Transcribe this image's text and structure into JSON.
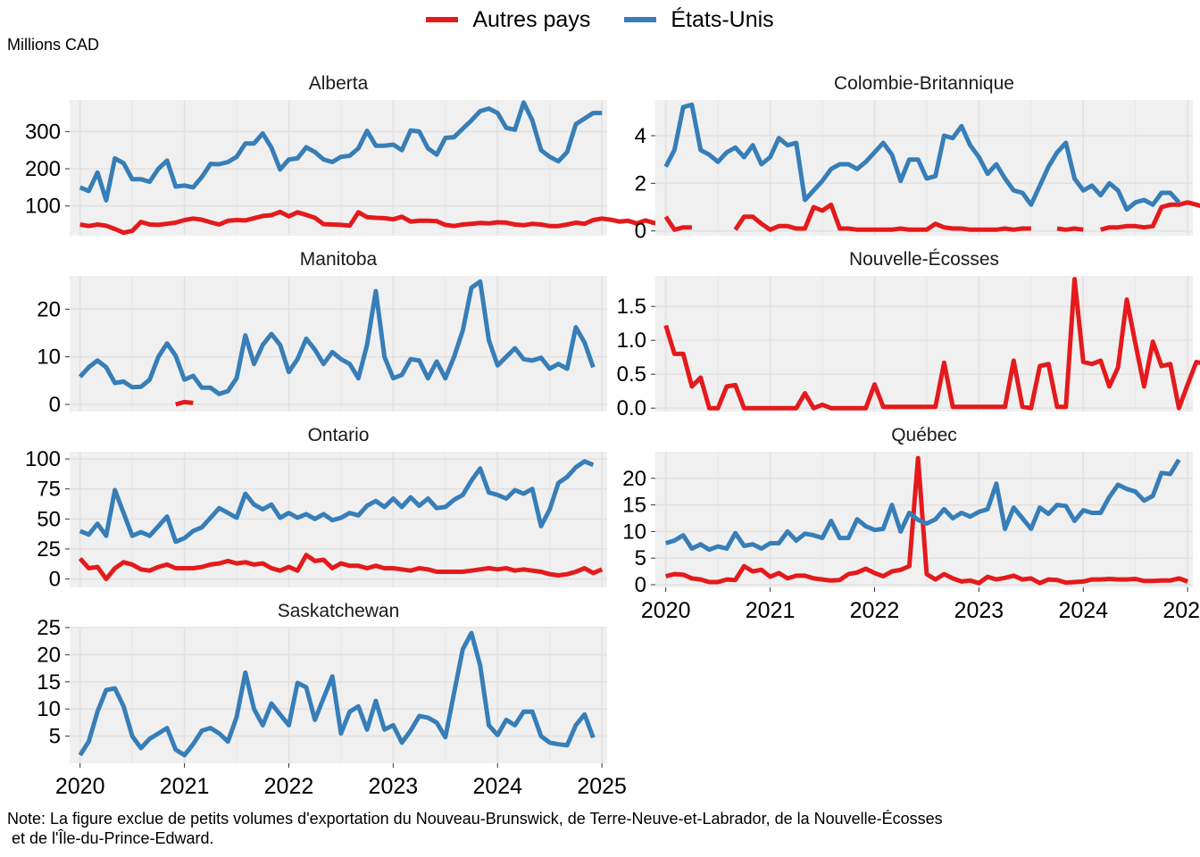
{
  "legend": {
    "items": [
      {
        "label": "Autres pays",
        "color": "#E41A1C"
      },
      {
        "label": "États-Unis",
        "color": "#377EB8"
      }
    ]
  },
  "unit_label": "Millions CAD",
  "note": {
    "line1": "Note: La figure exclue de petits volumes d'exportation du Nouveau-Brunswick, de Terre-Neuve-et-Labrador, de la Nouvelle-Écosses",
    "line2": " et de l'Île-du-Prince-Edward."
  },
  "chart_data": {
    "type": "line",
    "time_start": "2020-01",
    "time_step": "month",
    "x_ticks": [
      "2020",
      "2021",
      "2022",
      "2023",
      "2024",
      "2025"
    ],
    "x_range": [
      2019.9,
      2025.05
    ],
    "grid": true,
    "legend_position": "top",
    "panels": [
      {
        "title": "Alberta",
        "ylim": [
          20,
          385
        ],
        "yticks": [
          100,
          200,
          300
        ],
        "ytick_labels": [
          "100",
          "200",
          "300"
        ],
        "series": [
          {
            "name": "Autres pays",
            "values": [
              50,
              46,
              50,
              47,
              38,
              28,
              33,
              57,
              50,
              49,
              52,
              55,
              62,
              66,
              63,
              56,
              50,
              60,
              62,
              61,
              67,
              73,
              75,
              84,
              72,
              83,
              76,
              68,
              51,
              50,
              49,
              47,
              83,
              70,
              68,
              67,
              64,
              71,
              58,
              60,
              60,
              59,
              49,
              46,
              50,
              52,
              54,
              53,
              56,
              55,
              50,
              48,
              52,
              50,
              46,
              46,
              50,
              55,
              52,
              62,
              66,
              63,
              58,
              60,
              53,
              61,
              54,
              53,
              49,
              48,
              51,
              55
            ]
          },
          {
            "name": "États-Unis",
            "values": [
              150,
              140,
              190,
              115,
              228,
              215,
              172,
              172,
              165,
              200,
              222,
              152,
              155,
              150,
              178,
              213,
              212,
              218,
              232,
              268,
              268,
              295,
              257,
              198,
              225,
              228,
              258,
              245,
              225,
              218,
              232,
              235,
              255,
              302,
              262,
              262,
              265,
              250,
              303,
              300,
              255,
              238,
              283,
              285,
              308,
              330,
              355,
              362,
              350,
              310,
              305,
              378,
              330,
              250,
              232,
              220,
              245,
              320,
              335,
              350,
              350
            ]
          }
        ]
      },
      {
        "title": "Colombie-Britannique",
        "ylim": [
          -0.2,
          5.5
        ],
        "yticks": [
          0,
          2,
          4
        ],
        "ytick_labels": [
          "0",
          "2",
          "4"
        ],
        "series": [
          {
            "name": "Autres pays",
            "values": [
              0.6,
              0.05,
              0.15,
              0.15,
              null,
              null,
              null,
              null,
              0.05,
              0.6,
              0.6,
              0.3,
              0.05,
              0.2,
              0.2,
              0.1,
              0.1,
              1.0,
              0.85,
              1.1,
              0.1,
              0.1,
              0.05,
              0.05,
              0.05,
              0.05,
              0.05,
              0.1,
              0.05,
              0.05,
              0.05,
              0.3,
              0.15,
              0.1,
              0.1,
              0.05,
              0.05,
              0.05,
              0.05,
              0.1,
              0.05,
              0.1,
              0.1,
              null,
              null,
              0.1,
              0.05,
              0.1,
              0.05,
              null,
              0.05,
              0.15,
              0.15,
              0.2,
              0.2,
              0.15,
              0.2,
              1.0,
              1.1,
              1.1,
              1.2,
              1.1,
              1.0
            ]
          },
          {
            "name": "États-Unis",
            "values": [
              2.7,
              3.4,
              5.2,
              5.3,
              3.4,
              3.2,
              2.9,
              3.3,
              3.5,
              3.1,
              3.6,
              2.8,
              3.1,
              3.9,
              3.6,
              3.7,
              1.3,
              1.7,
              2.1,
              2.6,
              2.8,
              2.8,
              2.6,
              2.9,
              3.3,
              3.7,
              3.2,
              2.1,
              3.0,
              3.0,
              2.2,
              2.3,
              4.0,
              3.9,
              4.4,
              3.6,
              3.1,
              2.4,
              2.8,
              2.2,
              1.7,
              1.6,
              1.1,
              1.9,
              2.7,
              3.3,
              3.7,
              2.2,
              1.7,
              1.9,
              1.5,
              2.0,
              1.7,
              0.9,
              1.2,
              1.3,
              1.1,
              1.6,
              1.6,
              1.2
            ]
          }
        ]
      },
      {
        "title": "Manitoba",
        "ylim": [
          -1.5,
          27
        ],
        "yticks": [
          0,
          10,
          20
        ],
        "ytick_labels": [
          "0",
          "10",
          "20"
        ],
        "series": [
          {
            "name": "Autres pays",
            "values": [
              null,
              null,
              null,
              null,
              null,
              null,
              null,
              null,
              null,
              null,
              null,
              0.0,
              0.5,
              0.3
            ]
          },
          {
            "name": "États-Unis",
            "values": [
              5.8,
              7.8,
              9.2,
              7.8,
              4.5,
              4.8,
              3.6,
              3.7,
              5.2,
              10.0,
              12.8,
              10.2,
              5.2,
              6.0,
              3.5,
              3.5,
              2.2,
              2.8,
              5.5,
              14.5,
              8.5,
              12.5,
              14.8,
              12.5,
              6.8,
              9.5,
              13.8,
              11.5,
              8.5,
              11.0,
              9.5,
              8.5,
              5.5,
              12.5,
              23.8,
              10.0,
              5.5,
              6.2,
              9.5,
              9.2,
              5.5,
              9.0,
              5.5,
              10.0,
              15.5,
              24.5,
              25.8,
              13.5,
              8.2,
              10.0,
              11.8,
              9.5,
              9.2,
              9.8,
              7.5,
              8.5,
              7.5,
              16.2,
              13.0,
              7.8
            ]
          }
        ]
      },
      {
        "title": "Nouvelle-Écosses",
        "ylim": [
          -0.05,
          1.95
        ],
        "yticks": [
          0,
          0.5,
          1.0,
          1.5
        ],
        "ytick_labels": [
          "0.0",
          "0.5",
          "1.0",
          "1.5"
        ],
        "series": [
          {
            "name": "Autres pays",
            "values": [
              1.22,
              0.8,
              0.8,
              0.32,
              0.45,
              0.0,
              0.0,
              0.32,
              0.34,
              0.0,
              0.0,
              0.0,
              0.0,
              0.0,
              0.0,
              0.0,
              0.22,
              0.0,
              0.05,
              0.0,
              0.0,
              0.0,
              0.0,
              0.0,
              0.35,
              0.02,
              0.02,
              0.02,
              0.02,
              0.02,
              0.02,
              0.02,
              0.67,
              0.02,
              0.02,
              0.02,
              0.02,
              0.02,
              0.02,
              0.02,
              0.7,
              0.02,
              0.0,
              0.62,
              0.65,
              0.02,
              0.02,
              1.9,
              0.68,
              0.65,
              0.7,
              0.32,
              0.6,
              1.6,
              0.95,
              0.32,
              0.98,
              0.62,
              0.65,
              0.0,
              0.35,
              0.68,
              0.65
            ]
          }
        ]
      },
      {
        "title": "Ontario",
        "ylim": [
          -7,
          106
        ],
        "yticks": [
          0,
          25,
          50,
          75,
          100
        ],
        "ytick_labels": [
          "0",
          "25",
          "50",
          "75",
          "100"
        ],
        "series": [
          {
            "name": "Autres pays",
            "values": [
              17,
              9,
              10,
              0,
              9,
              14,
              12,
              8,
              7,
              10,
              12,
              9,
              9,
              9,
              10,
              12,
              13,
              15,
              13,
              14,
              12,
              13,
              9,
              7,
              10,
              7,
              20,
              15,
              16,
              9,
              13,
              11,
              11,
              9,
              11,
              9,
              9,
              8,
              7,
              9,
              8,
              6,
              6,
              6,
              6,
              7,
              8,
              9,
              8,
              9,
              7,
              8,
              7,
              6,
              4,
              3,
              4,
              6,
              9,
              5,
              8
            ]
          },
          {
            "name": "États-Unis",
            "values": [
              40,
              37,
              46,
              36,
              74,
              55,
              36,
              39,
              36,
              44,
              52,
              31,
              34,
              40,
              43,
              51,
              59,
              55,
              51,
              71,
              62,
              58,
              62,
              51,
              55,
              51,
              54,
              50,
              54,
              49,
              51,
              55,
              53,
              61,
              65,
              60,
              67,
              60,
              68,
              61,
              67,
              59,
              60,
              66,
              70,
              82,
              92,
              72,
              70,
              67,
              74,
              71,
              75,
              44,
              58,
              80,
              85,
              93,
              98,
              95
            ]
          }
        ]
      },
      {
        "title": "Québec",
        "ylim": [
          -0.5,
          25
        ],
        "yticks": [
          0,
          5,
          10,
          15,
          20
        ],
        "ytick_labels": [
          "0",
          "5",
          "10",
          "15",
          "20"
        ],
        "series": [
          {
            "name": "Autres pays",
            "values": [
              1.6,
              2.0,
              1.9,
              1.2,
              1.0,
              0.5,
              0.5,
              1.0,
              0.9,
              3.5,
              2.5,
              2.8,
              1.5,
              2.2,
              1.2,
              1.7,
              1.7,
              1.2,
              1.0,
              0.8,
              0.9,
              2.0,
              2.3,
              3.0,
              2.2,
              1.6,
              2.5,
              2.8,
              3.5,
              23.8,
              2.0,
              1.0,
              2.0,
              1.2,
              0.6,
              0.8,
              0.3,
              1.5,
              1.0,
              1.3,
              1.7,
              1.0,
              1.2,
              0.3,
              1.0,
              0.9,
              0.4,
              0.5,
              0.6,
              1.0,
              1.0,
              1.1,
              1.0,
              1.0,
              1.1,
              0.7,
              0.7,
              0.8,
              0.8,
              1.2,
              0.6
            ]
          },
          {
            "name": "États-Unis",
            "values": [
              7.8,
              8.3,
              9.3,
              6.8,
              7.6,
              6.6,
              7.2,
              6.8,
              9.7,
              7.3,
              7.6,
              6.8,
              7.8,
              7.8,
              10.0,
              8.3,
              9.6,
              9.3,
              8.8,
              12.0,
              8.8,
              8.8,
              12.3,
              11.0,
              10.3,
              10.5,
              15.0,
              10.0,
              13.5,
              12.2,
              11.5,
              12.3,
              14.2,
              12.5,
              13.5,
              12.8,
              13.7,
              14.2,
              19.0,
              10.5,
              14.5,
              12.5,
              10.5,
              14.5,
              13.3,
              15.0,
              14.8,
              12.0,
              14.0,
              13.5,
              13.5,
              16.5,
              18.8,
              18.0,
              17.5,
              15.8,
              16.7,
              21.0,
              20.8,
              23.5
            ]
          }
        ]
      },
      {
        "title": "Saskatchewan",
        "ylim": [
          0,
          25
        ],
        "yticks": [
          5,
          10,
          15,
          20,
          25
        ],
        "ytick_labels": [
          "5",
          "10",
          "15",
          "20",
          "25"
        ],
        "series": [
          {
            "name": "États-Unis",
            "values": [
              1.5,
              4.0,
              9.5,
              13.5,
              13.8,
              10.5,
              5.0,
              2.8,
              4.5,
              5.5,
              6.5,
              2.5,
              1.5,
              3.5,
              6.0,
              6.5,
              5.5,
              4.0,
              8.5,
              16.7,
              10.0,
              7.0,
              11.0,
              9.0,
              7.0,
              14.8,
              14.0,
              8.0,
              12.0,
              16.0,
              5.5,
              9.5,
              10.5,
              6.2,
              11.5,
              6.2,
              7.0,
              3.8,
              6.0,
              8.7,
              8.4,
              7.5,
              4.8,
              13.0,
              21.0,
              24.0,
              18.0,
              7.0,
              5.2,
              8.0,
              7.0,
              9.5,
              9.5,
              5.0,
              3.8,
              3.5,
              3.3,
              7.0,
              9.0,
              4.7
            ]
          }
        ]
      }
    ]
  }
}
